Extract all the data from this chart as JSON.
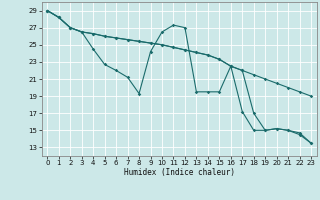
{
  "xlabel": "Humidex (Indice chaleur)",
  "background_color": "#cce8e8",
  "grid_color": "#b0d0d0",
  "line_color": "#1a6b6b",
  "xlim": [
    -0.5,
    23.5
  ],
  "ylim": [
    12,
    30
  ],
  "xticks": [
    0,
    1,
    2,
    3,
    4,
    5,
    6,
    7,
    8,
    9,
    10,
    11,
    12,
    13,
    14,
    15,
    16,
    17,
    18,
    19,
    20,
    21,
    22,
    23
  ],
  "yticks": [
    13,
    15,
    17,
    19,
    21,
    23,
    25,
    27,
    29
  ],
  "series1_x": [
    0,
    1,
    2,
    3,
    4,
    5,
    6,
    7,
    8,
    9,
    10,
    11,
    12,
    13,
    14,
    15,
    16,
    17,
    18,
    19,
    20,
    21,
    22,
    23
  ],
  "series1_y": [
    29,
    28.2,
    27,
    26.5,
    26.3,
    26.0,
    25.8,
    25.6,
    25.4,
    25.2,
    25.0,
    24.7,
    24.4,
    24.1,
    23.8,
    23.3,
    22.5,
    22.0,
    21.5,
    21.0,
    20.5,
    20.0,
    19.5,
    19.0
  ],
  "series2_x": [
    0,
    1,
    2,
    3,
    4,
    5,
    6,
    7,
    8,
    9,
    10,
    11,
    12,
    13,
    14,
    15,
    16,
    17,
    18,
    19,
    20,
    21,
    22,
    23
  ],
  "series2_y": [
    29,
    28.2,
    27,
    26.5,
    24.5,
    22.7,
    22.0,
    21.2,
    19.3,
    24.2,
    26.5,
    27.3,
    27.0,
    19.5,
    19.5,
    19.5,
    22.5,
    17.2,
    15.0,
    15.0,
    15.2,
    15.0,
    14.5,
    13.5
  ],
  "series3_x": [
    0,
    1,
    2,
    3,
    4,
    5,
    6,
    7,
    8,
    9,
    10,
    11,
    12,
    13,
    14,
    15,
    16,
    17,
    18,
    19,
    20,
    21,
    22,
    23
  ],
  "series3_y": [
    29,
    28.2,
    27,
    26.5,
    26.3,
    26.0,
    25.8,
    25.6,
    25.4,
    25.2,
    25.0,
    24.7,
    24.4,
    24.1,
    23.8,
    23.3,
    22.5,
    22.0,
    17.0,
    15.0,
    15.2,
    15.0,
    14.7,
    13.5
  ]
}
